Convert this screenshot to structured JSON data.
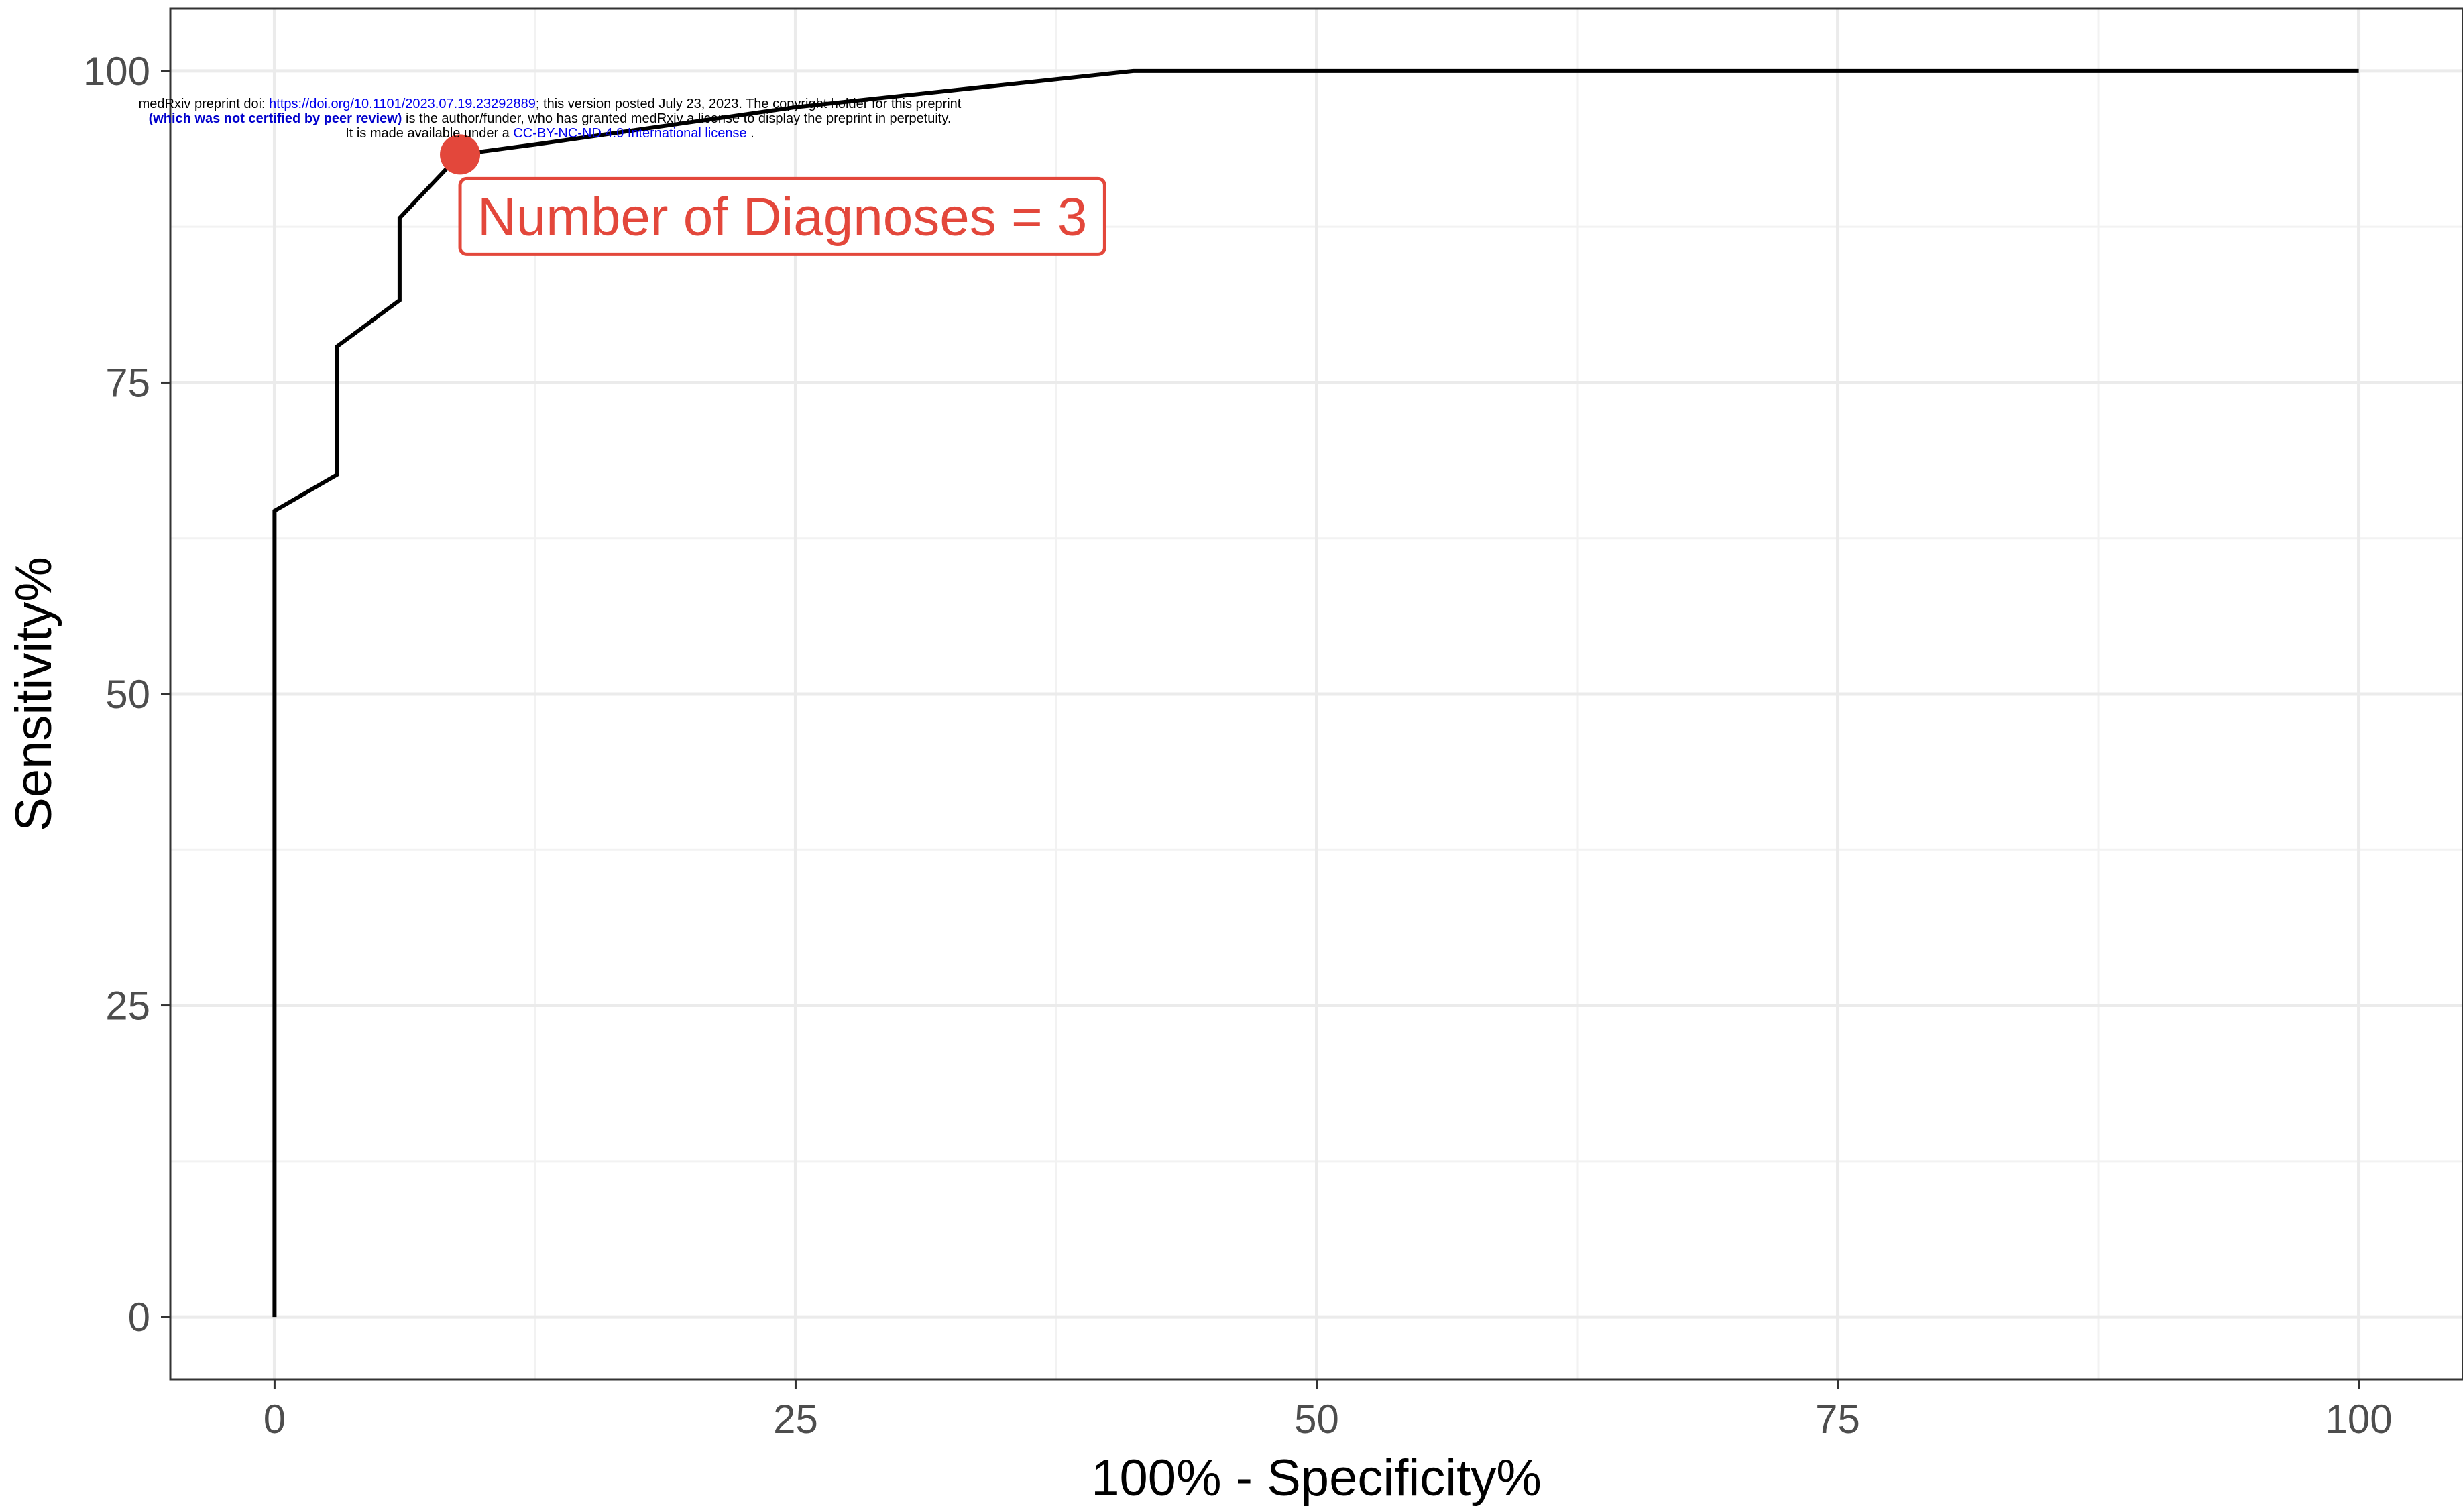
{
  "watermark": {
    "line1_prefix": "medRxiv preprint doi: ",
    "doi_link": "https://doi.org/10.1101/2023.07.19.23292889",
    "line1_suffix": "; this version posted July 23, 2023. The copyright holder for this preprint",
    "line2_bold": "(which was not certified by peer review)",
    "line2_rest": " is the author/funder, who has granted medRxiv a license to display the preprint in perpetuity.",
    "line3_prefix": "It is made available under a ",
    "license_link": "CC-BY-NC-ND 4.0 International license",
    "line3_suffix": " ."
  },
  "chart_data": {
    "type": "line",
    "title": "",
    "xlabel": "100% - Specificity%",
    "ylabel": "Sensitivity%",
    "xlim": [
      -5,
      105
    ],
    "ylim": [
      -5,
      105
    ],
    "x_ticks": [
      0,
      25,
      50,
      75,
      100
    ],
    "y_ticks": [
      0,
      25,
      50,
      75,
      100
    ],
    "x_tick_labels": [
      "0",
      "25",
      "50",
      "75",
      "100"
    ],
    "y_tick_labels": [
      "0",
      "25",
      "50",
      "75",
      "100"
    ],
    "grid": true,
    "line_color": "#000000",
    "series": [
      {
        "x": [
          0,
          0,
          3,
          3,
          6,
          6,
          8.9,
          12.5,
          25,
          41.2,
          100
        ],
        "y": [
          0,
          64.7,
          67.6,
          77.9,
          81.6,
          88.2,
          93.3,
          94.1,
          97.1,
          100,
          100
        ]
      }
    ],
    "annotation": {
      "text": "Number of Diagnoses = 3",
      "point": [
        8.9,
        93.3
      ],
      "color": "#e3473b"
    }
  }
}
